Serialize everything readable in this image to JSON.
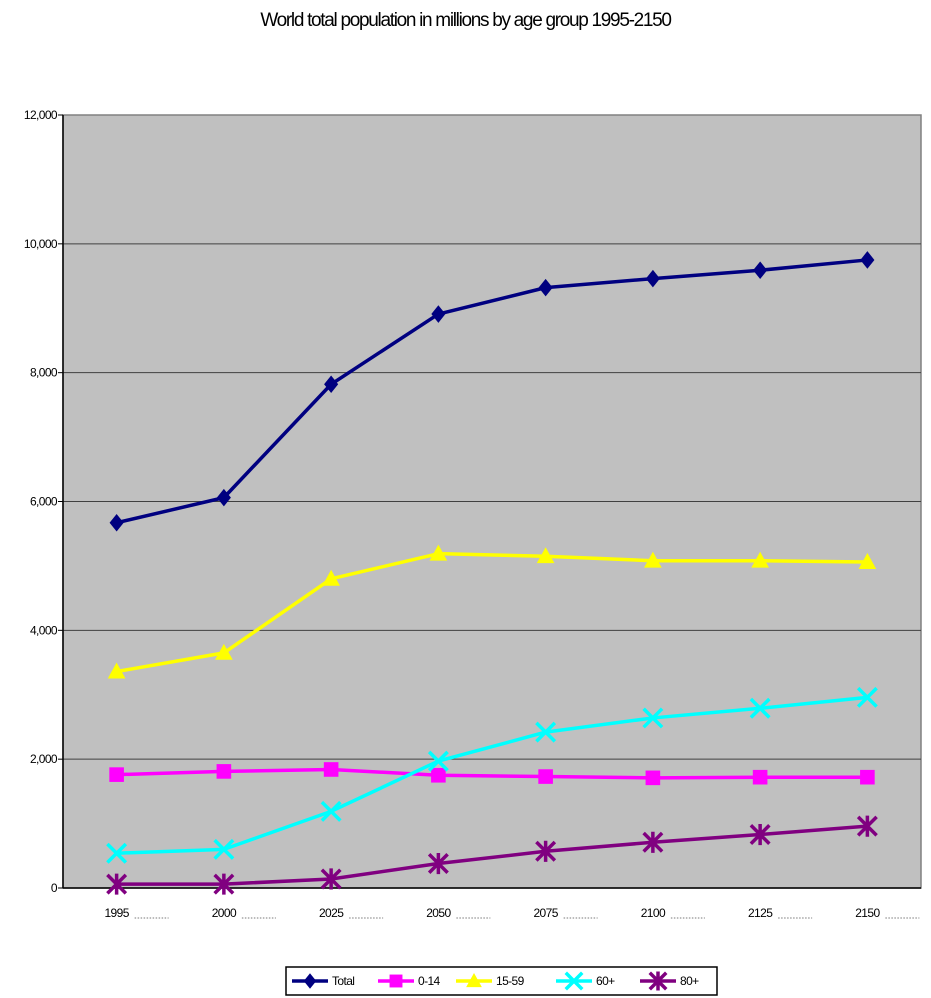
{
  "chart_data": {
    "type": "line",
    "title": "World total population in millions by age group 1995-2150",
    "xlabel": "",
    "ylabel": "",
    "categories": [
      "1995",
      "2000",
      "2025",
      "2050",
      "2075",
      "2100",
      "2125",
      "2150"
    ],
    "y_ticks": [
      "0",
      "2,000",
      "4,000",
      "6,000",
      "8,000",
      "10,000",
      "12,000"
    ],
    "ylim": [
      0,
      12000
    ],
    "grid": "horizontal",
    "legend_position": "bottom",
    "plot_background": "#c0c0c0",
    "series": [
      {
        "name": "Total",
        "color": "#000080",
        "marker": "diamond",
        "values": [
          5670,
          6060,
          7820,
          8910,
          9320,
          9460,
          9590,
          9750
        ]
      },
      {
        "name": "0-14",
        "color": "#ff00ff",
        "marker": "square",
        "values": [
          1760,
          1810,
          1840,
          1750,
          1730,
          1710,
          1720,
          1720
        ]
      },
      {
        "name": "15-59",
        "color": "#ffff00",
        "marker": "triangle",
        "values": [
          3360,
          3650,
          4800,
          5190,
          5150,
          5080,
          5080,
          5060
        ]
      },
      {
        "name": "60+",
        "color": "#00ffff",
        "marker": "x",
        "values": [
          540,
          600,
          1190,
          1970,
          2420,
          2640,
          2790,
          2960
        ]
      },
      {
        "name": "80+",
        "color": "#800080",
        "marker": "star",
        "values": [
          60,
          60,
          140,
          380,
          570,
          710,
          830,
          960
        ]
      }
    ]
  }
}
